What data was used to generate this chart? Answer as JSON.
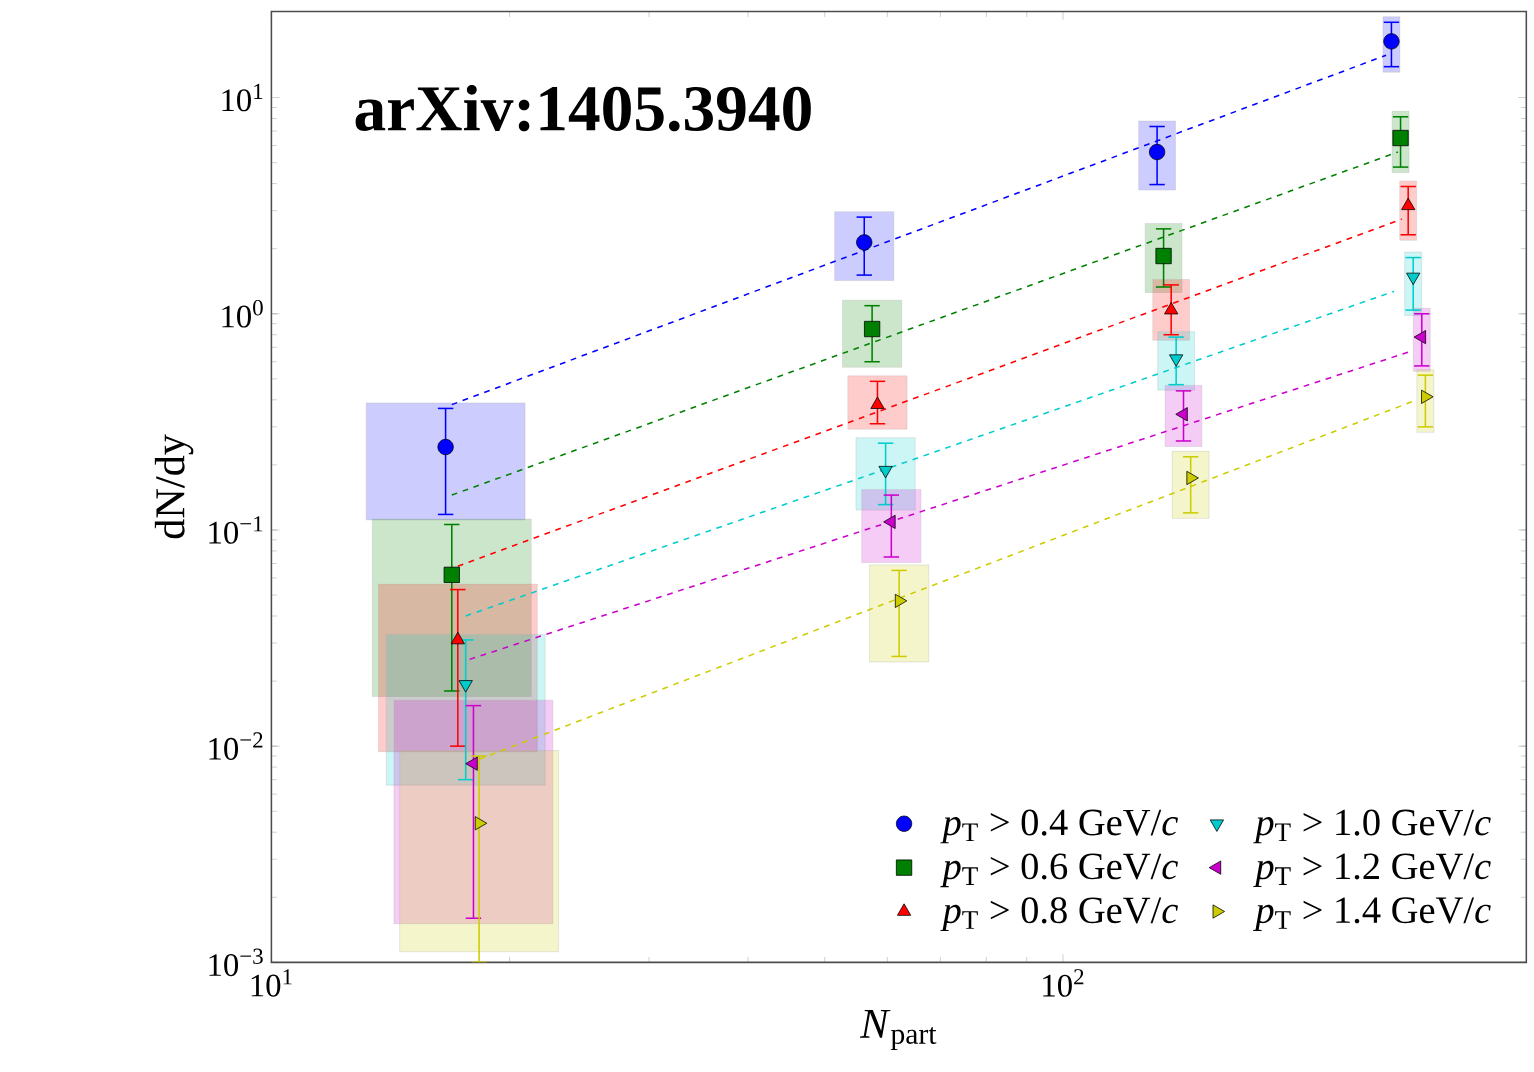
{
  "chart_data": {
    "type": "scatter",
    "xlabel": "*N*$_{part}$",
    "ylabel": "dN/dy",
    "annotations": [
      "arXiv:1405.3940"
    ],
    "log": "xy",
    "legend": "bottom right",
    "xlim": [
      10,
      385
    ],
    "ylim": [
      0.001,
      25
    ],
    "xticks": [
      {
        "value": 10,
        "label": "10$^{1}$"
      },
      {
        "value": 100,
        "label": "10$^{2}$"
      }
    ],
    "yticks": [
      {
        "value": 0.001,
        "label": "10$^{−3}$"
      },
      {
        "value": 0.01,
        "label": "10$^{−2}$"
      },
      {
        "value": 0.1,
        "label": "10$^{−1}$"
      },
      {
        "value": 1,
        "label": "10$^{0}$"
      },
      {
        "value": 10,
        "label": "10$^{1}$"
      }
    ],
    "series": [
      {
        "name": "*p*$_{T}$ > 0.4 GeV/*c*",
        "color": "#0000ff",
        "marker": "circle",
        "x": [
          16.6,
          56.1,
          131.5,
          260
        ],
        "values": [
          0.242,
          2.14,
          5.6,
          18.2
        ],
        "errors": [
          [
            0.118,
            0.365
          ],
          [
            1.51,
            2.8
          ],
          [
            3.96,
            7.35
          ],
          [
            13.9,
            22.3
          ]
        ]
      },
      {
        "name": "*p*$_{T}$ > 0.6 GeV/*c*",
        "color": "#008000",
        "marker": "square",
        "x": [
          16.9,
          57.4,
          134,
          267
        ],
        "values": [
          0.062,
          0.85,
          1.85,
          6.5
        ],
        "errors": [
          [
            0.018,
            0.106
          ],
          [
            0.6,
            1.09
          ],
          [
            1.33,
            2.47
          ],
          [
            4.77,
            8.15
          ]
        ]
      },
      {
        "name": "*p*$_{T}$ > 0.8 GeV/*c*",
        "color": "#ff0000",
        "marker": "triangle",
        "x": [
          17.2,
          58.3,
          137,
          273
        ],
        "values": [
          0.031,
          0.38,
          1.04,
          3.16
        ],
        "errors": [
          [
            0.01,
            0.053
          ],
          [
            0.31,
            0.487
          ],
          [
            0.8,
            1.36
          ],
          [
            2.32,
            3.88
          ]
        ]
      },
      {
        "name": "*p*$_{T}$ > 1.0 GeV/*c*",
        "color": "#00cccc",
        "marker": "triangle-down",
        "x": [
          17.6,
          59.7,
          139,
          277
        ],
        "values": [
          0.0193,
          0.189,
          0.62,
          1.48
        ],
        "errors": [
          [
            0.007,
            0.031
          ],
          [
            0.131,
            0.252
          ],
          [
            0.47,
            0.78
          ],
          [
            1.04,
            1.82
          ]
        ]
      },
      {
        "name": "*p*$_{T}$ > 1.2 GeV/*c*",
        "color": "#cc00cc",
        "marker": "triangle-left",
        "x": [
          18.0,
          60.7,
          142,
          284
        ],
        "values": [
          0.0083,
          0.109,
          0.343,
          0.78
        ],
        "errors": [
          [
            0.0016,
            0.0154
          ],
          [
            0.075,
            0.145
          ],
          [
            0.258,
            0.44
          ],
          [
            0.574,
            1.0
          ]
        ]
      },
      {
        "name": "*p*$_{T}$ > 1.4 GeV/*c*",
        "color": "#cccc00",
        "marker": "triangle-right",
        "x": [
          18.3,
          62.1,
          145,
          287
        ],
        "values": [
          0.0044,
          0.047,
          0.174,
          0.413
        ],
        "errors": [
          [
            0.001,
            0.009
          ],
          [
            0.026,
            0.065
          ],
          [
            0.12,
            0.218
          ],
          [
            0.3,
            0.52
          ]
        ]
      },
      {
        "type": "line",
        "color": "#0000ff",
        "line_style": "dashed",
        "marker": "none",
        "x": [
          16.9,
          256
        ],
        "values": [
          0.38,
          15.7
        ]
      },
      {
        "type": "line",
        "color": "#008000",
        "line_style": "dashed",
        "marker": "none",
        "x": [
          16.9,
          265
        ],
        "values": [
          0.145,
          5.6
        ]
      },
      {
        "type": "line",
        "color": "#ff0000",
        "line_style": "dashed",
        "marker": "none",
        "x": [
          17.2,
          268
        ],
        "values": [
          0.068,
          2.74
        ]
      },
      {
        "type": "line",
        "color": "#00cccc",
        "line_style": "dashed",
        "marker": "none",
        "x": [
          17.6,
          262
        ],
        "values": [
          0.04,
          1.27
        ]
      },
      {
        "type": "line",
        "color": "#cc00cc",
        "line_style": "dashed",
        "marker": "none",
        "x": [
          17.8,
          277
        ],
        "values": [
          0.0252,
          0.676
        ]
      },
      {
        "type": "line",
        "color": "#cccc00",
        "line_style": "dashed",
        "marker": "none",
        "x": [
          18.3,
          280
        ],
        "values": [
          0.0087,
          0.4
        ]
      }
    ]
  }
}
